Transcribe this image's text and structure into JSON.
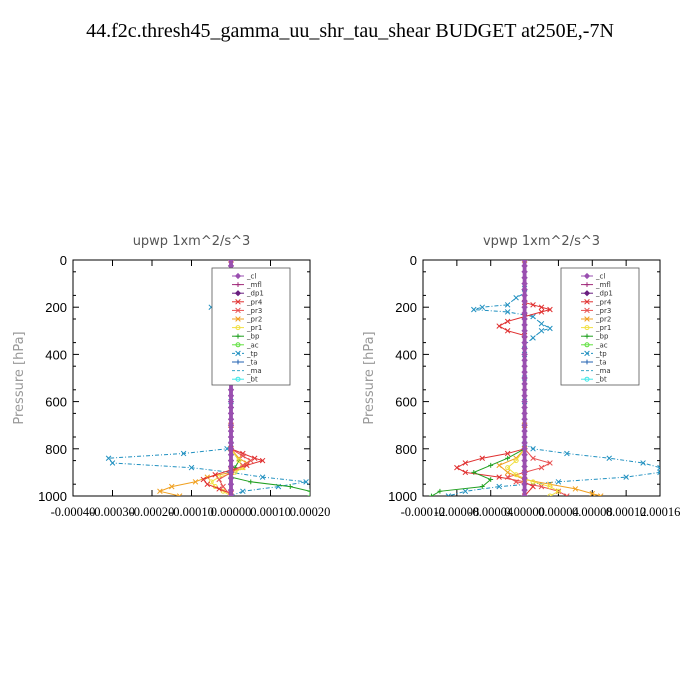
{
  "page": {
    "title": "44.f2c.thresh45_gamma_uu_shr_tau_shear  BUDGET at250E,-7N"
  },
  "legend_order": [
    "_cl",
    "_mfl",
    "_dp1",
    "_pr4",
    "_pr3",
    "_pr2",
    "_pr1",
    "_bp",
    "_ac",
    "_tp",
    "_ta",
    "_ma",
    "_bt"
  ],
  "series_styles": {
    "_cl": {
      "color": "#9a4fb0",
      "dash": "",
      "marker": "diamond"
    },
    "_mfl": {
      "color": "#a02a7a",
      "dash": "",
      "marker": "plus"
    },
    "_dp1": {
      "color": "#6a1e80",
      "dash": "",
      "marker": "diamond"
    },
    "_pr4": {
      "color": "#e03030",
      "dash": "",
      "marker": "x"
    },
    "_pr3": {
      "color": "#e85050",
      "dash": "",
      "marker": "x"
    },
    "_pr2": {
      "color": "#f0a020",
      "dash": "",
      "marker": "x"
    },
    "_pr1": {
      "color": "#f0e040",
      "dash": "",
      "marker": "circle"
    },
    "_bp": {
      "color": "#20a020",
      "dash": "",
      "marker": "plus"
    },
    "_ac": {
      "color": "#60e040",
      "dash": "",
      "marker": "circle"
    },
    "_tp": {
      "color": "#2090c0",
      "dash": "4,2,1,2",
      "marker": "x"
    },
    "_ta": {
      "color": "#2060b0",
      "dash": "",
      "marker": "plus"
    },
    "_ma": {
      "color": "#3aa8c8",
      "dash": "5,3",
      "marker": "none"
    },
    "_bt": {
      "color": "#40e8e8",
      "dash": "",
      "marker": "circle"
    }
  },
  "chart_data": [
    {
      "type": "line",
      "title": "upwp   1xm^2/s^3",
      "ylabel": "Pressure [hPa]",
      "xlim": [
        -0.0004,
        0.0002
      ],
      "ylim": [
        1000,
        0
      ],
      "xticks": [
        -0.0004,
        -0.0003,
        -0.0002,
        -0.0001,
        0.0,
        0.0001,
        0.0002
      ],
      "xtick_labels": [
        "-0.00040",
        "-0.00030",
        "-0.00020",
        "-0.00010",
        "0.00000",
        "0.00010",
        "0.00020"
      ],
      "yticks": [
        0,
        200,
        400,
        600,
        800,
        1000
      ],
      "ytick_labels": [
        "0",
        "200",
        "400",
        "600",
        "800",
        "1000"
      ],
      "legend_position": "top-right",
      "series": [
        {
          "name": "_tp",
          "p": [
            0,
            150,
            180,
            200,
            210,
            230,
            250,
            300,
            350,
            400,
            500,
            600,
            700,
            780,
            800,
            820,
            840,
            860,
            880,
            900,
            920,
            940,
            960,
            980,
            1000
          ],
          "values": [
            0,
            0,
            -2e-05,
            -5e-05,
            -4e-05,
            -2e-05,
            -1e-05,
            0,
            0,
            0,
            0,
            0,
            0,
            0,
            -1e-05,
            -0.00012,
            -0.00031,
            -0.0003,
            -0.0001,
            0,
            8e-05,
            0.00019,
            0.00012,
            3e-05,
            0
          ]
        },
        {
          "name": "_bp",
          "p": [
            0,
            700,
            800,
            850,
            880,
            920,
            940,
            960,
            980,
            1000
          ],
          "values": [
            0,
            0,
            0,
            2e-05,
            1e-05,
            0,
            5e-05,
            0.00015,
            0.0002,
            0.0002
          ]
        },
        {
          "name": "_pr2",
          "p": [
            0,
            700,
            800,
            840,
            860,
            880,
            900,
            920,
            940,
            960,
            980,
            1000
          ],
          "values": [
            0,
            0,
            0,
            2e-05,
            4e-05,
            3e-05,
            0,
            -6e-05,
            -9e-05,
            -0.00015,
            -0.00018,
            -0.00013
          ]
        },
        {
          "name": "_pr1",
          "p": [
            0,
            700,
            800,
            850,
            880,
            900,
            920,
            940,
            960,
            980,
            1000
          ],
          "values": [
            0,
            0,
            0,
            2e-05,
            3e-05,
            1e-05,
            -3e-05,
            -5e-05,
            -4e-05,
            -2e-05,
            0
          ]
        },
        {
          "name": "_pr4",
          "p": [
            0,
            700,
            800,
            820,
            840,
            850,
            870,
            890,
            910,
            930,
            950,
            970,
            990,
            1000
          ],
          "values": [
            0,
            0,
            0,
            3e-05,
            6e-05,
            8e-05,
            4e-05,
            0,
            -4e-05,
            -7e-05,
            -6e-05,
            -3e-05,
            0,
            0
          ]
        },
        {
          "name": "_pr3",
          "p": [
            0,
            180,
            200,
            220,
            240,
            260,
            700,
            800,
            830,
            850,
            870,
            900,
            930,
            960,
            1000
          ],
          "values": [
            0,
            0,
            1e-05,
            0,
            -1e-05,
            0,
            0,
            0,
            3e-05,
            5e-05,
            3e-05,
            0,
            -3e-05,
            -2e-05,
            0
          ]
        },
        {
          "name": "_dp1",
          "p": [
            0,
            1000
          ],
          "values": [
            0,
            0
          ]
        },
        {
          "name": "_cl",
          "p": [
            0,
            1000
          ],
          "values": [
            0,
            0
          ]
        }
      ]
    },
    {
      "type": "line",
      "title": "vpwp   1xm^2/s^3",
      "ylabel": "Pressure [hPa]",
      "xlim": [
        -0.00012,
        0.00016
      ],
      "ylim": [
        1000,
        0
      ],
      "xticks": [
        -0.00012,
        -8e-05,
        -4e-05,
        0.0,
        4e-05,
        8e-05,
        0.00012,
        0.00016
      ],
      "xtick_labels": [
        "-0.00012",
        "-0.00008",
        "-0.00004",
        "0.00000",
        "0.00004",
        "0.00008",
        "0.00012",
        "0.00016"
      ],
      "yticks": [
        0,
        200,
        400,
        600,
        800,
        1000
      ],
      "ytick_labels": [
        "0",
        "200",
        "400",
        "600",
        "800",
        "1000"
      ],
      "legend_position": "top-right",
      "series": [
        {
          "name": "_tp",
          "p": [
            0,
            120,
            140,
            160,
            190,
            200,
            210,
            220,
            240,
            270,
            290,
            300,
            330,
            360,
            400,
            500,
            600,
            700,
            780,
            800,
            820,
            840,
            860,
            880,
            900,
            920,
            940,
            960,
            980,
            1000
          ],
          "values": [
            0,
            0,
            0,
            -1e-05,
            -2e-05,
            -5e-05,
            -6e-05,
            -2e-05,
            1e-05,
            2e-05,
            3e-05,
            2e-05,
            1e-05,
            0,
            0,
            0,
            0,
            0,
            0,
            1e-05,
            5e-05,
            0.0001,
            0.00014,
            0.00016,
            0.00016,
            0.00012,
            4e-05,
            -3e-05,
            -7e-05,
            -9e-05
          ]
        },
        {
          "name": "_pr4",
          "p": [
            0,
            180,
            190,
            200,
            210,
            220,
            240,
            260,
            280,
            300,
            320,
            700,
            800,
            820,
            840,
            860,
            880,
            900,
            920,
            940,
            960,
            1000
          ],
          "values": [
            0,
            0,
            1e-05,
            2e-05,
            3e-05,
            2e-05,
            0,
            -2e-05,
            -3e-05,
            -2e-05,
            0,
            0,
            0,
            -2e-05,
            -5e-05,
            -7e-05,
            -8e-05,
            -7e-05,
            -3e-05,
            0,
            1e-05,
            0
          ]
        },
        {
          "name": "_pr3",
          "p": [
            0,
            700,
            800,
            840,
            860,
            880,
            900,
            920,
            940,
            960,
            980,
            1000
          ],
          "values": [
            0,
            0,
            0,
            1e-05,
            3e-05,
            2e-05,
            0,
            -2e-05,
            -1e-05,
            2e-05,
            4e-05,
            5e-05
          ]
        },
        {
          "name": "_pr2",
          "p": [
            0,
            700,
            800,
            840,
            870,
            900,
            930,
            950,
            970,
            990,
            1000
          ],
          "values": [
            0,
            0,
            0,
            -1e-05,
            -3e-05,
            -2e-05,
            0,
            3e-05,
            6e-05,
            8e-05,
            9e-05
          ]
        },
        {
          "name": "_pr1",
          "p": [
            0,
            700,
            800,
            850,
            880,
            910,
            940,
            960,
            980,
            1000
          ],
          "values": [
            0,
            0,
            0,
            -1e-05,
            -2e-05,
            -1e-05,
            1e-05,
            3e-05,
            4e-05,
            3e-05
          ]
        },
        {
          "name": "_bp",
          "p": [
            0,
            700,
            800,
            840,
            870,
            900,
            930,
            960,
            980,
            1000
          ],
          "values": [
            0,
            0,
            0,
            -2e-05,
            -4e-05,
            -6e-05,
            -4e-05,
            -5e-05,
            -0.0001,
            -0.00011
          ]
        },
        {
          "name": "_dp1",
          "p": [
            0,
            1000
          ],
          "values": [
            0,
            0
          ]
        },
        {
          "name": "_cl",
          "p": [
            0,
            1000
          ],
          "values": [
            0,
            0
          ]
        }
      ]
    }
  ]
}
